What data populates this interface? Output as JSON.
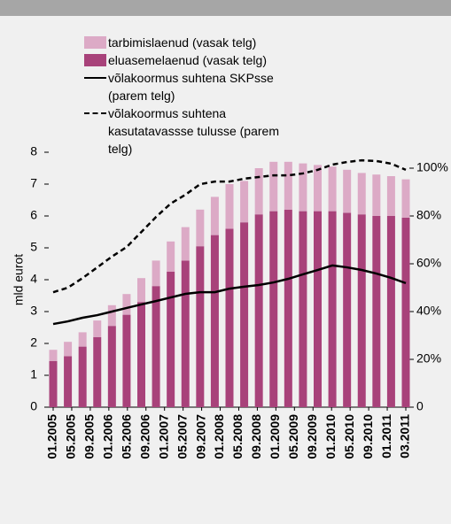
{
  "chart_data": {
    "type": "stacked_bar_line",
    "y_axis_label": "mld eurot",
    "x_tick_labels": [
      "01.2005",
      "05.2005",
      "09.2005",
      "01.2006",
      "05.2006",
      "09.2006",
      "01.2007",
      "05.2007",
      "09.2007",
      "01.2008",
      "05.2008",
      "09.2008",
      "01.2009",
      "05.2009",
      "09.2009",
      "01.2010",
      "05.2010",
      "09.2010",
      "01.2011",
      "03.2011"
    ],
    "ylim": [
      0,
      8
    ],
    "yticks": [
      0,
      1,
      2,
      3,
      4,
      5,
      6,
      7,
      8
    ],
    "y2lim": [
      0,
      106.67
    ],
    "y2ticks": [
      0,
      {
        "value": 20,
        "label": "20%"
      },
      {
        "value": 40,
        "label": "40%"
      },
      {
        "value": 60,
        "label": "60%"
      },
      {
        "value": 80,
        "label": "80%"
      },
      {
        "value": 100,
        "label": "100%"
      }
    ],
    "series": [
      {
        "name": "tarbimislaenud (vasak telg)",
        "color": "#dcaac6",
        "kind": "bar",
        "values": [
          0.35,
          0.45,
          0.45,
          0.52,
          0.65,
          0.65,
          0.75,
          0.8,
          0.95,
          1.05,
          1.15,
          1.2,
          1.4,
          1.3,
          1.45,
          1.55,
          1.5,
          1.5,
          1.45,
          1.4,
          1.35,
          1.3,
          1.3,
          1.25,
          1.2
        ]
      },
      {
        "name": "eluasemelaenud (vasak telg)",
        "color": "#a8427a",
        "kind": "bar",
        "values": [
          1.45,
          1.6,
          1.9,
          2.2,
          2.55,
          2.9,
          3.3,
          3.8,
          4.25,
          4.6,
          5.05,
          5.4,
          5.6,
          5.8,
          6.05,
          6.15,
          6.2,
          6.15,
          6.15,
          6.15,
          6.1,
          6.05,
          6.0,
          6.0,
          5.95
        ]
      },
      {
        "name": "võlakoormus suhtena SKPsse (parem telg)",
        "color": "#000000",
        "kind": "line",
        "dash": false,
        "axis": "y2",
        "values": [
          34.8,
          35.9,
          37.4,
          38.5,
          40,
          41.5,
          43,
          44.4,
          45.9,
          47.4,
          48.1,
          48.1,
          49.6,
          50.4,
          51.1,
          52.2,
          53.7,
          55.6,
          57.4,
          59.3,
          58.5,
          57.4,
          55.9,
          54.1,
          51.9
        ]
      },
      {
        "name": "võlakoormus suhtena kasutatavassse tulusse (parem telg)",
        "color": "#000000",
        "kind": "line",
        "dash": true,
        "axis": "y2",
        "values": [
          48.1,
          50,
          54,
          58.5,
          63,
          67,
          73.3,
          79.6,
          85.2,
          88.9,
          93.3,
          94.4,
          94.4,
          95.6,
          96.3,
          97,
          97,
          97.8,
          99.3,
          101.5,
          102.6,
          103.3,
          103,
          101.9,
          99.3
        ]
      }
    ]
  }
}
